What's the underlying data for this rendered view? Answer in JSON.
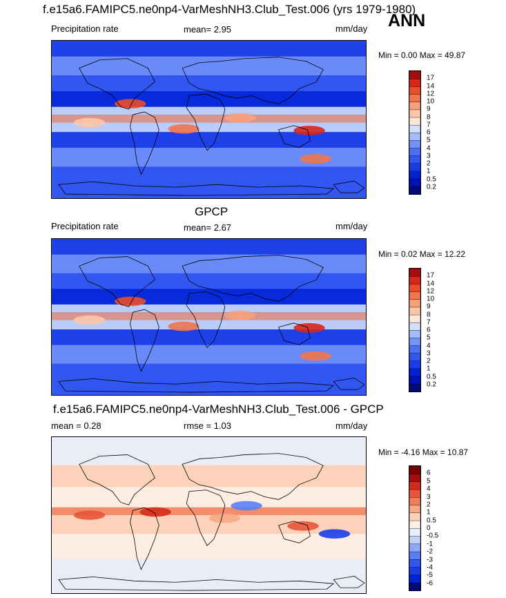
{
  "header": {
    "title": "f.e15a6.FAMIPC5.ne0np4-VarMeshNH3.Club_Test.006 (yrs 1979-1980)",
    "season": "ANN"
  },
  "panels": [
    {
      "top_title": "",
      "left_label": "Precipitation rate",
      "center_label": "mean=   2.95",
      "right_label": "mm/day",
      "minmax": "Min =   0.00 Max =  49.87",
      "palette": "precip"
    },
    {
      "top_title": "GPCP",
      "left_label": "Precipitation rate",
      "center_label": "mean=   2.67",
      "right_label": "mm/day",
      "minmax": "Min =   0.02 Max =  12.22",
      "palette": "precip"
    },
    {
      "top_title": "f.e15a6.FAMIPC5.ne0np4-VarMeshNH3.Club_Test.006 - GPCP",
      "left_label": "mean =    0.28",
      "center_label": "rmse =   1.03",
      "right_label": "mm/day",
      "minmax": "Min =  -4.16 Max =  10.87",
      "palette": "diff"
    }
  ],
  "chart_data": [
    {
      "type": "heatmap",
      "title": "f.e15a6.FAMIPC5.ne0np4-VarMeshNH3.Club_Test.006 (yrs 1979-1980)",
      "variable": "Precipitation rate",
      "units": "mm/day",
      "mean": 2.95,
      "min": 0.0,
      "max": 49.87,
      "contour_levels": [
        0.2,
        0.5,
        1,
        2,
        3,
        4,
        5,
        6,
        7,
        8,
        9,
        10,
        12,
        14,
        17
      ],
      "colors": [
        "#000a7a",
        "#0011b8",
        "#0022d6",
        "#1a3ce8",
        "#3356f0",
        "#4c6ff5",
        "#7393f8",
        "#a4bdfa",
        "#d2e0fc",
        "#fde6d6",
        "#fbc6a8",
        "#f7a07a",
        "#f2764e",
        "#eb4d2a",
        "#d9261a",
        "#a80d0d"
      ]
    },
    {
      "type": "heatmap",
      "title": "GPCP",
      "variable": "Precipitation rate",
      "units": "mm/day",
      "mean": 2.67,
      "min": 0.02,
      "max": 12.22,
      "contour_levels": [
        0.2,
        0.5,
        1,
        2,
        3,
        4,
        5,
        6,
        7,
        8,
        9,
        10,
        12,
        14,
        17
      ],
      "colors": [
        "#000a7a",
        "#0011b8",
        "#0022d6",
        "#1a3ce8",
        "#3356f0",
        "#4c6ff5",
        "#7393f8",
        "#a4bdfa",
        "#d2e0fc",
        "#fde6d6",
        "#fbc6a8",
        "#f7a07a",
        "#f2764e",
        "#eb4d2a",
        "#d9261a",
        "#a80d0d"
      ]
    },
    {
      "type": "heatmap",
      "title": "f.e15a6.FAMIPC5.ne0np4-VarMeshNH3.Club_Test.006 - GPCP",
      "units": "mm/day",
      "mean": 0.28,
      "rmse": 1.03,
      "min": -4.16,
      "max": 10.87,
      "contour_levels": [
        -6,
        -5,
        -4,
        -3,
        -2,
        -1,
        -0.5,
        0,
        0.5,
        1,
        2,
        3,
        4,
        5,
        6
      ],
      "colors": [
        "#000a7a",
        "#0022d6",
        "#1a3ce8",
        "#3356f0",
        "#5a7ef6",
        "#8ea8f8",
        "#c1d2fb",
        "#e6eefd",
        "#fdeee6",
        "#fbd0b6",
        "#f7a884",
        "#f07d58",
        "#e8553a",
        "#d62b1c",
        "#a80d0d",
        "#7a0000"
      ]
    }
  ]
}
